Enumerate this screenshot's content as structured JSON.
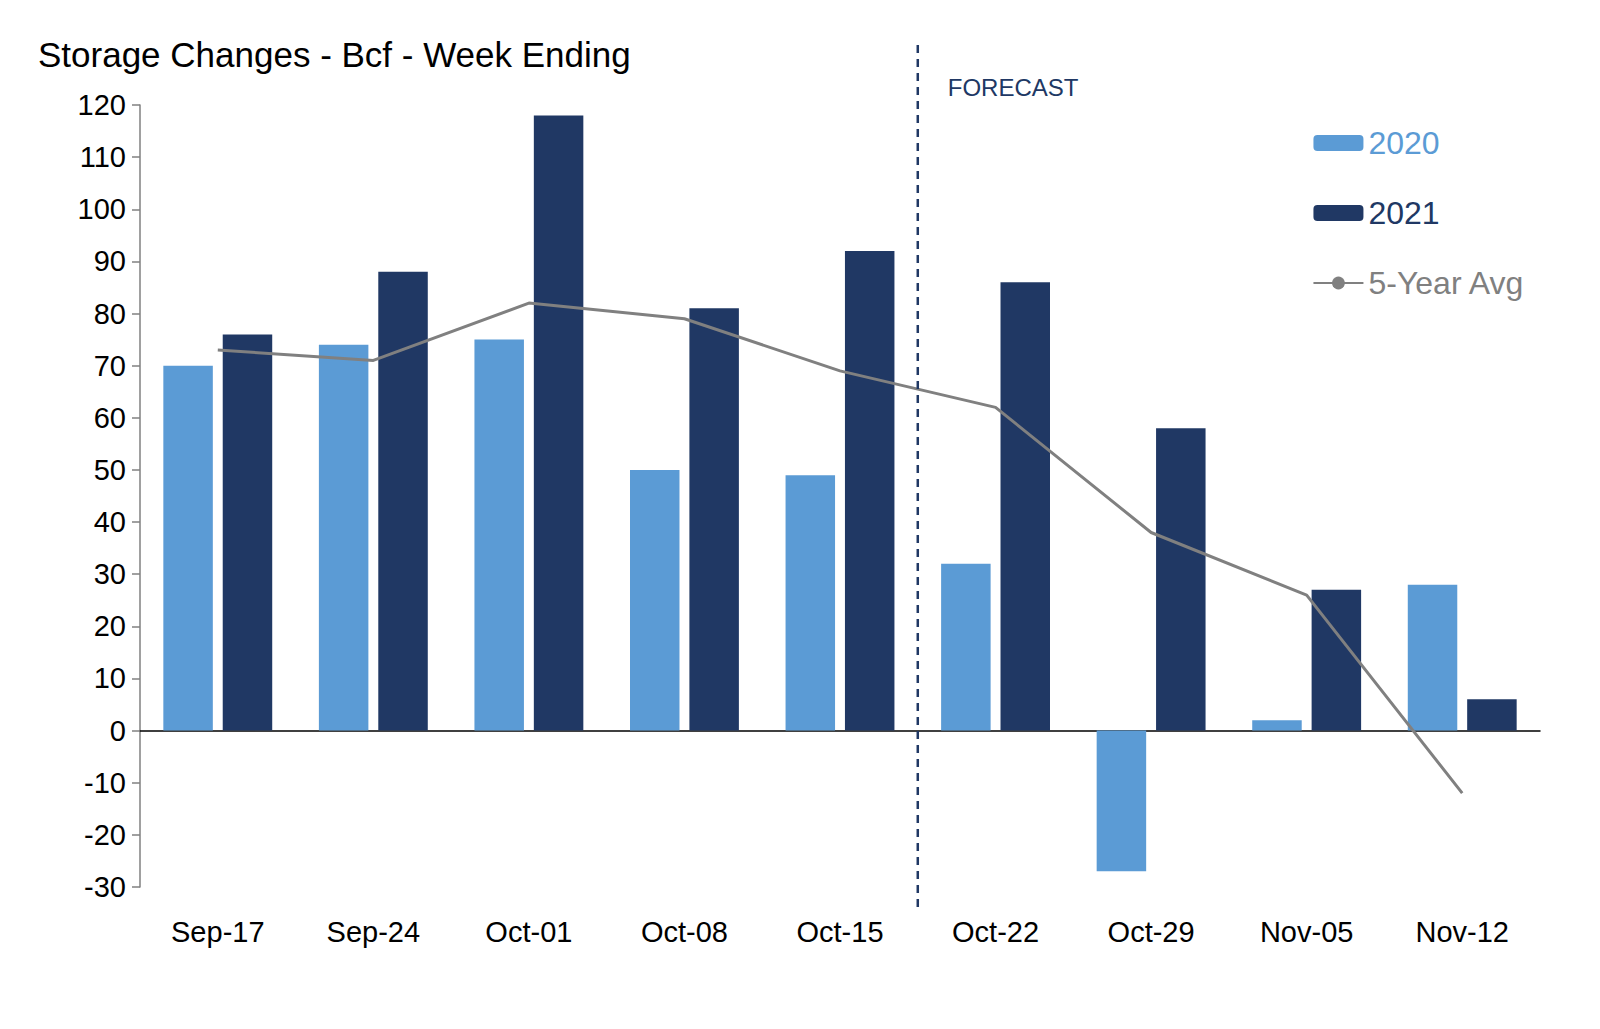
{
  "chart_data": {
    "type": "bar",
    "title": "Storage Changes - Bcf - Week Ending",
    "categories": [
      "Sep-17",
      "Sep-24",
      "Oct-01",
      "Oct-08",
      "Oct-15",
      "Oct-22",
      "Oct-29",
      "Nov-05",
      "Nov-12"
    ],
    "series": [
      {
        "name": "2020",
        "type": "bar",
        "color": "#5b9bd5",
        "values": [
          70,
          74,
          75,
          50,
          49,
          32,
          -27,
          2,
          28
        ]
      },
      {
        "name": "2021",
        "type": "bar",
        "color": "#203864",
        "values": [
          76,
          88,
          118,
          81,
          92,
          86,
          58,
          27,
          6
        ]
      },
      {
        "name": "5-Year Avg",
        "type": "line",
        "color": "#808080",
        "line_style": "solid",
        "values": [
          73,
          71,
          82,
          79,
          69,
          62,
          38,
          26,
          -12
        ]
      }
    ],
    "ylim": [
      -30,
      120
    ],
    "yticks": [
      -30,
      -20,
      -10,
      0,
      10,
      20,
      30,
      40,
      50,
      60,
      70,
      80,
      90,
      100,
      110,
      120
    ],
    "grid": false,
    "legend": "upper right",
    "annotations": [
      {
        "text": "FORECAST",
        "between": [
          "Oct-15",
          "Oct-22"
        ]
      }
    ]
  }
}
